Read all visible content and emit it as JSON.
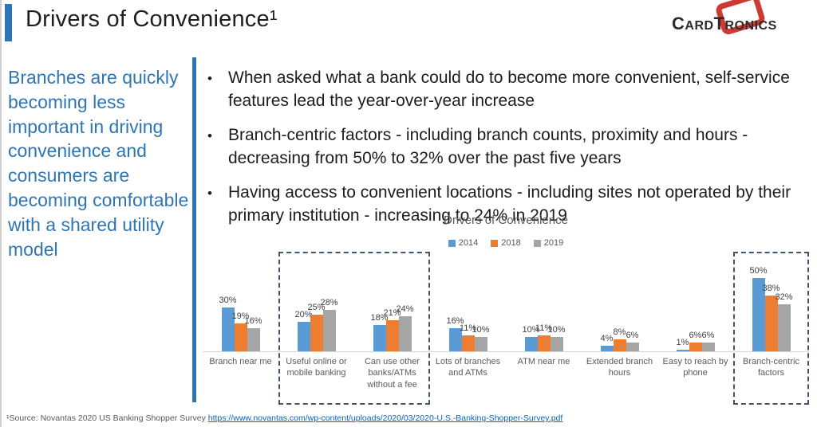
{
  "slide": {
    "title": "Drivers of Convenience¹",
    "accent_color": "#2E75B6"
  },
  "logo": {
    "name": "CardTronics",
    "text_part1": "C",
    "text_part2": "ARD",
    "text_part3": "T",
    "text_part4": "RONICS",
    "red_color": "#CE3A31"
  },
  "sidebar": {
    "statement": "Branches are quickly becoming less important in driving convenience and consumers are becoming comfortable with a shared utility model",
    "text_color": "#2E75B6"
  },
  "bullets": [
    "When asked what a bank could do to become more convenient, self-service features lead the year-over-year increase",
    "Branch-centric factors - including branch counts, proximity and hours - decreasing from 50% to 32% over the past five years",
    "Having access to convenient locations - including sites not operated by their primary institution - increasing to 24% in 2019"
  ],
  "chart_data": {
    "type": "bar",
    "title": "Drivers of Convenience",
    "categories": [
      "Branch near me",
      "Useful online or mobile banking",
      "Can use other banks/ATMs without a fee",
      "Lots of branches and ATMs",
      "ATM near me",
      "Extended branch hours",
      "Easy to reach by phone",
      "Branch-centric factors"
    ],
    "series": [
      {
        "name": "2014",
        "color": "#5B9BD5",
        "values": [
          30,
          20,
          18,
          16,
          10,
          4,
          1,
          50
        ]
      },
      {
        "name": "2018",
        "color": "#ED7D31",
        "values": [
          19,
          25,
          21,
          11,
          11,
          8,
          6,
          38
        ]
      },
      {
        "name": "2019",
        "color": "#A5A5A5",
        "values": [
          16,
          28,
          24,
          10,
          10,
          6,
          6,
          32
        ]
      }
    ],
    "value_suffix": "%",
    "ylim": [
      0,
      55
    ],
    "grid": false,
    "legend_position": "top",
    "highlight_boxes": [
      {
        "start_category": 1,
        "end_category": 2
      },
      {
        "start_category": 7,
        "end_category": 7
      }
    ]
  },
  "footer": {
    "source_prefix": "¹Source: Novantas 2020 US Banking Shopper Survey ",
    "link": "https://www.novantas.com/wp-content/uploads/2020/03/2020-U.S.-Banking-Shopper-Survey.pdf"
  }
}
